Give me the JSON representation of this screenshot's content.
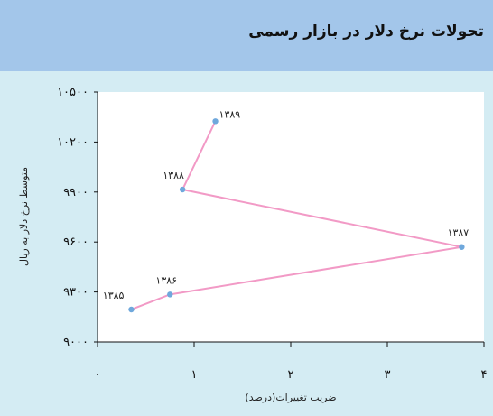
{
  "header": {
    "title": "تحولات نرخ دلار در بازار رسمی"
  },
  "colors": {
    "header_bg": "#a3c6ea",
    "panel_bg": "#d4ecf3",
    "plot_bg": "#ffffff",
    "line": "#f29ac6",
    "marker": "#6fa8dc"
  },
  "chart_data": {
    "type": "line",
    "xlabel": "ضریب تغییرات(درصد)",
    "ylabel": "متوسط نرخ دلار به ریال",
    "xlim": [
      0,
      4
    ],
    "ylim": [
      9000,
      10500
    ],
    "x_ticks": [
      0,
      1,
      2,
      3,
      4
    ],
    "x_tick_labels": [
      "۰",
      "۱",
      "۲",
      "۳",
      "۴"
    ],
    "y_ticks": [
      9000,
      9300,
      9600,
      9900,
      10200,
      10500
    ],
    "y_tick_labels": [
      "۹۰۰۰",
      "۹۳۰۰",
      "۹۶۰۰",
      "۹۹۰۰",
      "۱۰۲۰۰",
      "۱۰۵۰۰"
    ],
    "grid": false,
    "series": [
      {
        "points": [
          {
            "label": "۱۳۸۵",
            "x": 0.35,
            "y": 9195
          },
          {
            "label": "۱۳۸۶",
            "x": 0.75,
            "y": 9285
          },
          {
            "label": "۱۳۸۷",
            "x": 3.77,
            "y": 9570
          },
          {
            "label": "۱۳۸۸",
            "x": 0.88,
            "y": 9915
          },
          {
            "label": "۱۳۸۹",
            "x": 1.22,
            "y": 10325
          }
        ]
      }
    ]
  }
}
